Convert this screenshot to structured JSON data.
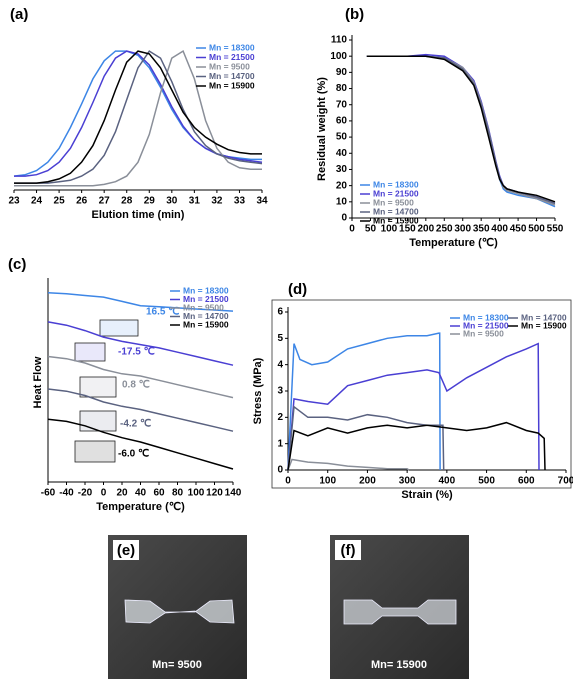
{
  "chart_data": [
    {
      "type": "line",
      "label": "(a)",
      "xlabel": "Elution time (min)",
      "x": [
        23,
        23.5,
        24,
        24.5,
        25,
        25.5,
        26,
        26.5,
        27,
        27.5,
        28,
        28.5,
        29,
        29.5,
        30,
        30.5,
        31,
        31.5,
        32,
        32.5,
        33,
        33.5,
        34
      ],
      "xlim": [
        23,
        34
      ],
      "xticks": [
        23,
        24,
        25,
        26,
        27,
        28,
        29,
        30,
        31,
        32,
        33,
        34
      ],
      "ylim": [
        0,
        1.08
      ],
      "series": [
        {
          "name": "Mn = 18300",
          "color": "#3d86e6",
          "values": [
            0.1,
            0.11,
            0.14,
            0.2,
            0.3,
            0.45,
            0.62,
            0.8,
            0.93,
            1.0,
            1.0,
            0.97,
            0.88,
            0.74,
            0.58,
            0.45,
            0.36,
            0.3,
            0.26,
            0.24,
            0.23,
            0.22,
            0.22
          ]
        },
        {
          "name": "Mn = 21500",
          "color": "#4a3fd3",
          "values": [
            0.1,
            0.1,
            0.11,
            0.14,
            0.2,
            0.3,
            0.45,
            0.63,
            0.82,
            0.95,
            1.0,
            0.98,
            0.9,
            0.76,
            0.6,
            0.46,
            0.36,
            0.3,
            0.26,
            0.24,
            0.22,
            0.21,
            0.2
          ]
        },
        {
          "name": "Mn = 9500",
          "color": "#8a8f99",
          "values": [
            0.03,
            0.03,
            0.03,
            0.03,
            0.03,
            0.03,
            0.03,
            0.03,
            0.04,
            0.06,
            0.1,
            0.2,
            0.4,
            0.7,
            0.95,
            1.0,
            0.8,
            0.5,
            0.3,
            0.2,
            0.16,
            0.15,
            0.15
          ]
        },
        {
          "name": "Mn = 14700",
          "color": "#5a6280",
          "values": [
            0.05,
            0.05,
            0.05,
            0.05,
            0.06,
            0.07,
            0.1,
            0.15,
            0.25,
            0.42,
            0.65,
            0.88,
            1.0,
            0.95,
            0.78,
            0.58,
            0.42,
            0.32,
            0.26,
            0.23,
            0.21,
            0.2,
            0.19
          ]
        },
        {
          "name": "Mn = 15900",
          "color": "#000000",
          "values": [
            0.05,
            0.05,
            0.05,
            0.06,
            0.08,
            0.12,
            0.2,
            0.32,
            0.5,
            0.72,
            0.92,
            1.0,
            0.98,
            0.88,
            0.72,
            0.56,
            0.45,
            0.38,
            0.33,
            0.29,
            0.27,
            0.26,
            0.26
          ]
        }
      ]
    },
    {
      "type": "line",
      "label": "(b)",
      "xlabel": "Temperature (℃)",
      "ylabel": "Residual weight (%)",
      "x": [
        40,
        100,
        150,
        200,
        250,
        300,
        330,
        350,
        370,
        390,
        400,
        410,
        420,
        450,
        500,
        550
      ],
      "xlim": [
        0,
        550
      ],
      "xticks": [
        0,
        50,
        100,
        150,
        200,
        250,
        300,
        350,
        400,
        450,
        500,
        550
      ],
      "ylim": [
        0,
        110
      ],
      "yticks": [
        0,
        10,
        20,
        30,
        40,
        50,
        60,
        70,
        80,
        90,
        100,
        110
      ],
      "series": [
        {
          "name": "Mn = 18300",
          "color": "#3d86e6",
          "values": [
            100,
            100,
            100,
            100,
            99,
            92,
            84,
            70,
            52,
            33,
            24,
            18,
            16,
            14,
            12,
            7
          ]
        },
        {
          "name": "Mn = 21500",
          "color": "#4a3fd3",
          "values": [
            100,
            100,
            100,
            101,
            100,
            93,
            85,
            72,
            55,
            35,
            26,
            20,
            18,
            16,
            13,
            9
          ]
        },
        {
          "name": "Mn = 9500",
          "color": "#8a8f99",
          "values": [
            100,
            100,
            100,
            100,
            99,
            93,
            84,
            71,
            54,
            34,
            25,
            19,
            17,
            15,
            12,
            8
          ]
        },
        {
          "name": "Mn = 14700",
          "color": "#5a6280",
          "values": [
            100,
            100,
            100,
            100,
            99,
            92,
            83,
            70,
            53,
            34,
            25,
            20,
            18,
            16,
            13,
            9
          ]
        },
        {
          "name": "Mn = 15900",
          "color": "#000000",
          "values": [
            100,
            100,
            100,
            100,
            98,
            91,
            82,
            68,
            50,
            32,
            24,
            20,
            18,
            16,
            14,
            10
          ]
        }
      ]
    },
    {
      "type": "line",
      "label": "(c)",
      "xlabel": "Temperature (℃)",
      "ylabel": "Heat Flow",
      "x": [
        -60,
        -40,
        -20,
        0,
        20,
        40,
        60,
        80,
        100,
        120,
        140
      ],
      "xlim": [
        -60,
        140
      ],
      "xticks": [
        -60,
        -40,
        -20,
        0,
        20,
        40,
        60,
        80,
        100,
        120,
        140
      ],
      "ylim": [
        1,
        10.2
      ],
      "annotations": [
        "16.5 ℃",
        "-17.5 ℃",
        "0.8 ℃",
        "-4.2 ℃",
        "-6.0 ℃"
      ],
      "series": [
        {
          "name": "Mn = 18300",
          "color": "#3d86e6",
          "values": [
            9.75,
            9.7,
            9.62,
            9.55,
            9.35,
            9.15,
            9.1,
            9.05,
            9.0,
            8.95,
            8.9
          ]
        },
        {
          "name": "Mn = 21500",
          "color": "#4a3fd3",
          "values": [
            8.4,
            8.25,
            8.0,
            7.7,
            7.5,
            7.35,
            7.2,
            7.0,
            6.8,
            6.6,
            6.4
          ]
        },
        {
          "name": "Mn = 9500",
          "color": "#8a8f99",
          "values": [
            6.8,
            6.7,
            6.5,
            6.2,
            6.0,
            5.9,
            5.7,
            5.5,
            5.3,
            5.1,
            4.9
          ]
        },
        {
          "name": "Mn = 14700",
          "color": "#5a6280",
          "values": [
            5.3,
            5.2,
            5.0,
            4.7,
            4.5,
            4.35,
            4.15,
            3.95,
            3.75,
            3.55,
            3.35
          ]
        },
        {
          "name": "Mn = 15900",
          "color": "#000000",
          "values": [
            3.9,
            3.8,
            3.6,
            3.3,
            3.05,
            2.85,
            2.6,
            2.35,
            2.1,
            1.85,
            1.6
          ]
        }
      ]
    },
    {
      "type": "line",
      "label": "(d)",
      "xlabel": "Strain (%)",
      "ylabel": "Stress (MPa)",
      "xlim": [
        0,
        700
      ],
      "xticks": [
        0,
        100,
        200,
        300,
        400,
        500,
        600,
        700
      ],
      "ylim": [
        0,
        6
      ],
      "yticks": [
        0,
        1,
        2,
        3,
        4,
        5,
        6
      ],
      "series": [
        {
          "name": "Mn = 18300",
          "color": "#3d86e6",
          "x": [
            0,
            15,
            30,
            60,
            100,
            150,
            200,
            250,
            300,
            350,
            380,
            382,
            383
          ],
          "values": [
            0,
            4.8,
            4.2,
            4.0,
            4.1,
            4.6,
            4.8,
            5.0,
            5.1,
            5.1,
            5.2,
            5.2,
            0
          ]
        },
        {
          "name": "Mn = 21500",
          "color": "#4a3fd3",
          "x": [
            0,
            15,
            50,
            100,
            150,
            200,
            250,
            300,
            350,
            380,
            400,
            450,
            500,
            550,
            600,
            630,
            632
          ],
          "values": [
            0,
            2.7,
            2.6,
            2.5,
            3.2,
            3.4,
            3.6,
            3.7,
            3.8,
            3.7,
            3.0,
            3.5,
            3.9,
            4.3,
            4.6,
            4.8,
            0
          ]
        },
        {
          "name": "Mn = 9500",
          "color": "#8a8f99",
          "x": [
            0,
            10,
            50,
            100,
            150,
            200,
            250,
            300,
            305
          ],
          "values": [
            0,
            0.4,
            0.3,
            0.25,
            0.15,
            0.1,
            0.05,
            0.05,
            0
          ]
        },
        {
          "name": "Mn = 14700",
          "color": "#5a6280",
          "x": [
            0,
            15,
            50,
            100,
            150,
            200,
            250,
            300,
            350,
            380,
            390,
            392
          ],
          "values": [
            0,
            2.4,
            2.0,
            2.0,
            1.9,
            2.1,
            2.0,
            1.8,
            1.7,
            1.7,
            1.7,
            0
          ]
        },
        {
          "name": "Mn = 15900",
          "color": "#000000",
          "x": [
            0,
            15,
            50,
            100,
            150,
            200,
            250,
            300,
            350,
            400,
            450,
            500,
            550,
            600,
            630,
            645,
            647
          ],
          "values": [
            0,
            1.5,
            1.3,
            1.6,
            1.4,
            1.6,
            1.7,
            1.6,
            1.7,
            1.6,
            1.5,
            1.6,
            1.8,
            1.5,
            1.4,
            1.2,
            0
          ]
        }
      ]
    }
  ],
  "photos": [
    {
      "label": "(e)",
      "caption": "Mn= 9500"
    },
    {
      "label": "(f)",
      "caption": "Mn= 15900"
    }
  ]
}
